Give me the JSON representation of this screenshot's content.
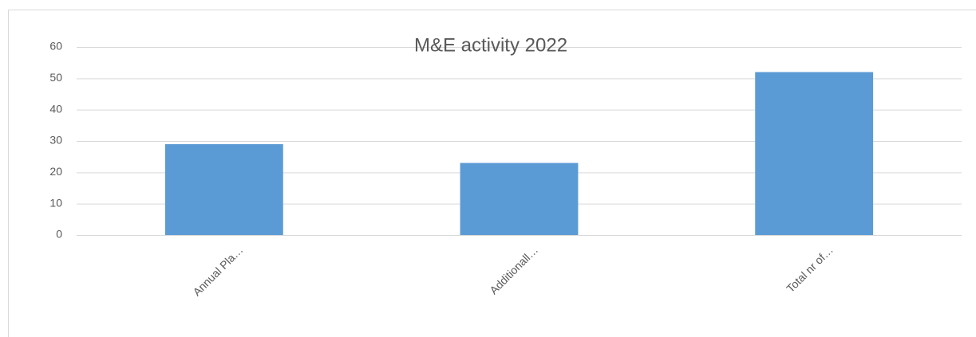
{
  "chart_data": {
    "type": "bar",
    "title": "M&E  activity 2022",
    "categories": [
      "Annual Pla…",
      "Additionall…",
      "Total nr of…"
    ],
    "values": [
      29,
      23,
      52
    ],
    "color": "#5b9bd5",
    "ylim": [
      0,
      60
    ],
    "yticks": [
      0,
      10,
      20,
      30,
      40,
      50,
      60
    ],
    "grid": true
  }
}
